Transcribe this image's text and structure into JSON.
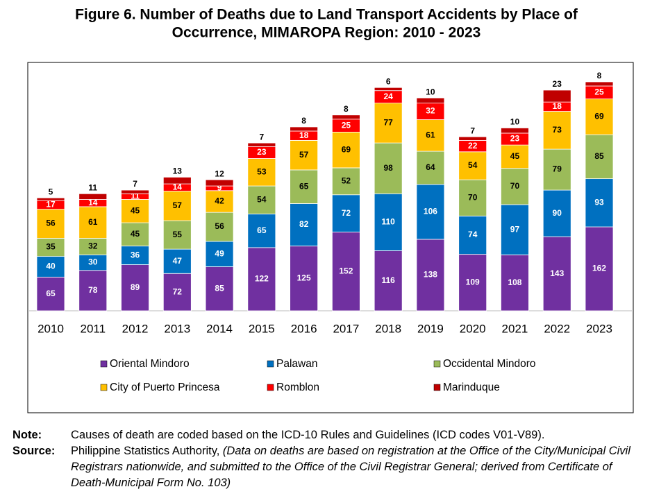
{
  "chart_data": {
    "type": "stacked_bar",
    "title": [
      "Figure 6. Number of Deaths due to Land Transport Accidents by Place of",
      "Occurrence, MIMAROPA Region: 2010 - 2023"
    ],
    "categories": [
      "2010",
      "2011",
      "2012",
      "2013",
      "2014",
      "2015",
      "2016",
      "2017",
      "2018",
      "2019",
      "2020",
      "2021",
      "2022",
      "2023"
    ],
    "series": [
      {
        "name": "Oriental Mindoro",
        "color": "#7030a0",
        "label_color": "#ffffff",
        "values": [
          65,
          78,
          89,
          72,
          85,
          122,
          125,
          152,
          116,
          138,
          109,
          108,
          143,
          162
        ]
      },
      {
        "name": "Palawan",
        "color": "#0070c0",
        "label_color": "#ffffff",
        "values": [
          40,
          30,
          36,
          47,
          49,
          65,
          82,
          72,
          110,
          106,
          74,
          97,
          90,
          93
        ]
      },
      {
        "name": "Occidental Mindoro",
        "color": "#9bbb59",
        "label_color": "#000000",
        "values": [
          35,
          32,
          45,
          55,
          56,
          54,
          65,
          52,
          98,
          64,
          70,
          70,
          79,
          85
        ]
      },
      {
        "name": "City of Puerto Princesa",
        "color": "#ffc000",
        "label_color": "#000000",
        "values": [
          56,
          61,
          45,
          57,
          42,
          53,
          57,
          69,
          77,
          61,
          54,
          45,
          73,
          69
        ]
      },
      {
        "name": "Romblon",
        "color": "#ff0000",
        "label_color": "#ffffff",
        "values": [
          17,
          14,
          11,
          14,
          9,
          23,
          18,
          25,
          24,
          32,
          22,
          23,
          18,
          25
        ]
      },
      {
        "name": "Marinduque",
        "color": "#c00000",
        "label_color": "#000000",
        "values": [
          5,
          11,
          7,
          13,
          12,
          7,
          8,
          8,
          6,
          10,
          7,
          10,
          23,
          8
        ]
      }
    ],
    "legend": "bottom",
    "notes": [
      {
        "label": "Note:",
        "text": "Causes of death are coded based on the ICD-10 Rules and Guidelines (ICD codes V01-V89)."
      },
      {
        "label": "Source:",
        "text": "Philippine Statistics Authority,",
        "italic": "(Data on deaths are based on registration at the Office of the City/Municipal Civil Registrars nationwide, and submitted to the Office of the Civil Registrar General; derived from Certificate of Death-Municipal Form No. 103)"
      }
    ]
  }
}
